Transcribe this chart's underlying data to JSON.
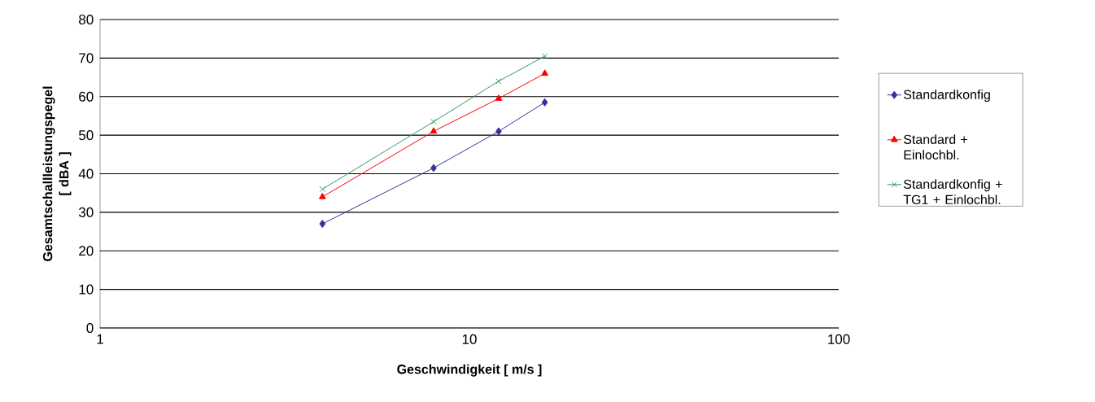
{
  "chart_data": {
    "type": "line",
    "xlabel": "Geschwindigkeit [ m/s ]",
    "ylabel": "Gesamtschallleistungspegel [ dBA ]",
    "x": [
      4,
      8,
      12,
      16
    ],
    "series": [
      {
        "name": "Standardkonfig",
        "color": "#333399",
        "marker": "diamond",
        "values": [
          27,
          41.5,
          51,
          58.5
        ]
      },
      {
        "name": "Standard + Einlochbl.",
        "color": "#ff0000",
        "marker": "triangle",
        "values": [
          34,
          51,
          59.5,
          66
        ]
      },
      {
        "name": "Standardkonfig + TG1 + Einlochbl.",
        "color": "#339966",
        "marker": "cross",
        "values": [
          36,
          53.5,
          64,
          70.5
        ]
      }
    ],
    "log": "x",
    "xlim": [
      1,
      100
    ],
    "xticks": [
      1,
      10,
      100
    ],
    "ylim": [
      0,
      80
    ],
    "yticks": [
      0,
      10,
      20,
      30,
      40,
      50,
      60,
      70,
      80
    ],
    "grid": "y",
    "legend": "right",
    "line_style": "solid"
  }
}
